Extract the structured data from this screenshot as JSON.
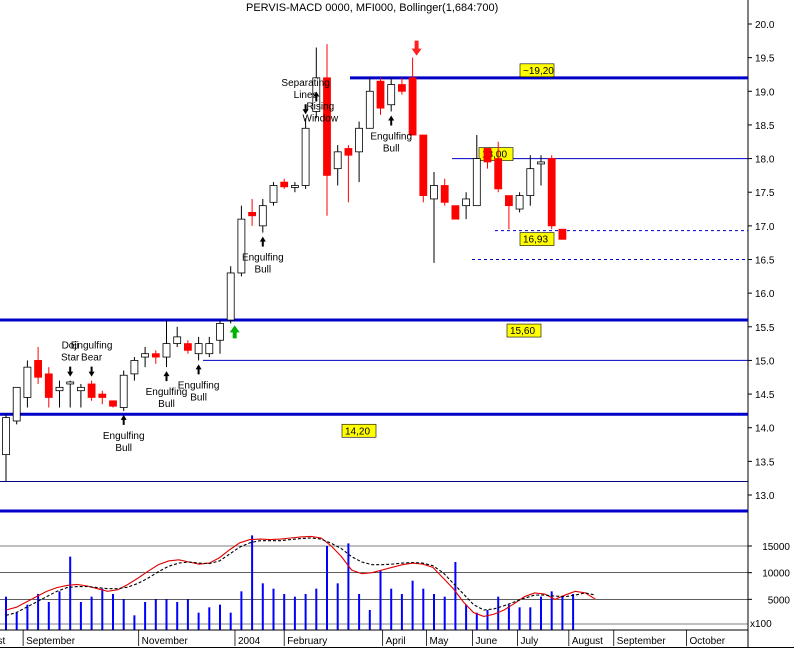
{
  "header": {
    "title": "PERVIS-MACD 0000, MFI000, Bollinger(1,684:700)"
  },
  "chart_data": [
    {
      "type": "candlestick",
      "title": "PERVIS-MACD 0000, MFI000, Bollinger(1,684:700)",
      "ylim": [
        12.7,
        20.3
      ],
      "yticks": [
        13.0,
        13.5,
        14.0,
        14.5,
        15.0,
        15.5,
        16.0,
        16.5,
        17.0,
        17.5,
        18.0,
        18.5,
        19.0,
        19.5,
        20.0
      ],
      "yticklabels": [
        "13.0",
        "13.5",
        "14.0",
        "14.5",
        "15.0",
        "15.5",
        "16.0",
        "16.5",
        "17.0",
        "17.5",
        "18.0",
        "18.5",
        "19.0",
        "19.5",
        "20.0"
      ],
      "candles": [
        {
          "o": 13.6,
          "h": 14.2,
          "l": 13.2,
          "c": 14.15
        },
        {
          "o": 14.1,
          "h": 14.6,
          "l": 14.05,
          "c": 14.6
        },
        {
          "o": 14.45,
          "h": 15.0,
          "l": 14.3,
          "c": 14.9
        },
        {
          "o": 15.0,
          "h": 15.2,
          "l": 14.65,
          "c": 14.75
        },
        {
          "o": 14.8,
          "h": 14.9,
          "l": 14.3,
          "c": 14.45
        },
        {
          "o": 14.55,
          "h": 14.7,
          "l": 14.3,
          "c": 14.6
        },
        {
          "o": 14.65,
          "h": 14.7,
          "l": 14.3,
          "c": 14.68
        },
        {
          "o": 14.55,
          "h": 14.65,
          "l": 14.3,
          "c": 14.6
        },
        {
          "o": 14.65,
          "h": 14.7,
          "l": 14.4,
          "c": 14.45
        },
        {
          "o": 14.5,
          "h": 14.55,
          "l": 14.35,
          "c": 14.45
        },
        {
          "o": 14.4,
          "h": 14.4,
          "l": 14.3,
          "c": 14.32
        },
        {
          "o": 14.3,
          "h": 14.85,
          "l": 14.25,
          "c": 14.78
        },
        {
          "o": 14.8,
          "h": 15.05,
          "l": 14.7,
          "c": 15.0
        },
        {
          "o": 15.05,
          "h": 15.2,
          "l": 14.9,
          "c": 15.1
        },
        {
          "o": 15.1,
          "h": 15.15,
          "l": 14.95,
          "c": 15.05
        },
        {
          "o": 15.05,
          "h": 15.6,
          "l": 14.9,
          "c": 15.25
        },
        {
          "o": 15.25,
          "h": 15.5,
          "l": 15.2,
          "c": 15.35
        },
        {
          "o": 15.25,
          "h": 15.3,
          "l": 15.1,
          "c": 15.15
        },
        {
          "o": 15.1,
          "h": 15.35,
          "l": 15.0,
          "c": 15.25
        },
        {
          "o": 15.1,
          "h": 15.35,
          "l": 15.05,
          "c": 15.25
        },
        {
          "o": 15.3,
          "h": 15.6,
          "l": 15.1,
          "c": 15.55
        },
        {
          "o": 15.6,
          "h": 16.4,
          "l": 15.55,
          "c": 16.3
        },
        {
          "o": 16.3,
          "h": 17.3,
          "l": 16.25,
          "c": 17.1
        },
        {
          "o": 17.2,
          "h": 17.4,
          "l": 17.0,
          "c": 17.15
        },
        {
          "o": 17.0,
          "h": 17.4,
          "l": 16.9,
          "c": 17.3
        },
        {
          "o": 17.35,
          "h": 17.65,
          "l": 17.3,
          "c": 17.6
        },
        {
          "o": 17.65,
          "h": 17.7,
          "l": 17.55,
          "c": 17.58
        },
        {
          "o": 17.6,
          "h": 17.65,
          "l": 17.5,
          "c": 17.6
        },
        {
          "o": 17.6,
          "h": 18.6,
          "l": 17.55,
          "c": 18.45
        },
        {
          "o": 18.7,
          "h": 19.65,
          "l": 18.6,
          "c": 19.2
        },
        {
          "o": 19.2,
          "h": 19.7,
          "l": 17.15,
          "c": 17.75
        },
        {
          "o": 17.85,
          "h": 18.2,
          "l": 17.6,
          "c": 18.1
        },
        {
          "o": 18.15,
          "h": 18.2,
          "l": 17.35,
          "c": 18.05
        },
        {
          "o": 18.1,
          "h": 18.55,
          "l": 17.65,
          "c": 18.45
        },
        {
          "o": 18.45,
          "h": 19.2,
          "l": 18.45,
          "c": 19.0
        },
        {
          "o": 19.15,
          "h": 19.2,
          "l": 18.65,
          "c": 18.75
        },
        {
          "o": 18.8,
          "h": 19.2,
          "l": 18.7,
          "c": 19.1
        },
        {
          "o": 19.1,
          "h": 19.2,
          "l": 18.95,
          "c": 19.0
        },
        {
          "o": 19.2,
          "h": 19.5,
          "l": 18.35,
          "c": 18.35
        },
        {
          "o": 18.35,
          "h": 18.35,
          "l": 17.35,
          "c": 17.45
        },
        {
          "o": 17.4,
          "h": 17.8,
          "l": 16.45,
          "c": 17.6
        },
        {
          "o": 17.6,
          "h": 17.7,
          "l": 17.3,
          "c": 17.35
        },
        {
          "o": 17.3,
          "h": 17.3,
          "l": 17.1,
          "c": 17.1
        },
        {
          "o": 17.3,
          "h": 17.5,
          "l": 17.1,
          "c": 17.4
        },
        {
          "o": 17.3,
          "h": 18.35,
          "l": 17.3,
          "c": 18.0
        },
        {
          "o": 18.15,
          "h": 18.15,
          "l": 17.85,
          "c": 17.95
        },
        {
          "o": 18.0,
          "h": 18.25,
          "l": 17.5,
          "c": 17.55
        },
        {
          "o": 17.45,
          "h": 17.45,
          "l": 16.95,
          "c": 17.3
        },
        {
          "o": 17.25,
          "h": 17.5,
          "l": 17.2,
          "c": 17.45
        },
        {
          "o": 17.45,
          "h": 18.05,
          "l": 17.3,
          "c": 17.85
        },
        {
          "o": 17.95,
          "h": 18.05,
          "l": 17.6,
          "c": 17.95
        },
        {
          "o": 18.0,
          "h": 18.05,
          "l": 16.95,
          "c": 17.0
        },
        {
          "o": 16.95,
          "h": 16.95,
          "l": 16.8,
          "c": 16.8
        }
      ],
      "levels": [
        {
          "value": 19.2,
          "label": "~19,20",
          "style": "thick"
        },
        {
          "value": 18.0,
          "label": "18,00",
          "style": "thin"
        },
        {
          "value": 15.6,
          "label": "15,60",
          "style": "thick"
        },
        {
          "value": 15.0,
          "label": "",
          "style": "thin"
        },
        {
          "value": 14.2,
          "label": "14,20",
          "style": "thick"
        },
        {
          "value": 13.2,
          "label": "",
          "style": "thin"
        },
        {
          "value": 16.93,
          "label": "16,93",
          "style": "dashed"
        },
        {
          "value": 16.5,
          "label": "",
          "style": "dashed"
        }
      ],
      "annotations": [
        {
          "text": "Doji Star",
          "candle": 6,
          "pos": "above"
        },
        {
          "text": "Engulfing Bear",
          "candle": 8,
          "pos": "above"
        },
        {
          "text": "Engulfing Bull",
          "candle": 11,
          "pos": "below"
        },
        {
          "text": "Engulfing Bull",
          "candle": 15,
          "pos": "below"
        },
        {
          "text": "Engulfing Bull",
          "candle": 18,
          "pos": "below"
        },
        {
          "text": "Engulfing Bull",
          "candle": 24,
          "pos": "below"
        },
        {
          "text": "Separating Lines",
          "candle": 28,
          "pos": "above"
        },
        {
          "text": "Rising Window",
          "candle": 29,
          "pos": "inside"
        },
        {
          "text": "Engulfing Bull",
          "candle": 36,
          "pos": "below"
        }
      ],
      "signals": [
        {
          "candle": 21,
          "direction": "up",
          "color": "#00b000"
        },
        {
          "candle": 38,
          "direction": "down",
          "color": "#ff2020"
        }
      ]
    },
    {
      "type": "bar",
      "title": "",
      "ylim": [
        0,
        18000
      ],
      "yticks": [
        5000,
        10000,
        15000
      ],
      "yticklabels": [
        "5000",
        "10000",
        "15000"
      ],
      "scale_label": "x100",
      "volume": [
        5500,
        2500,
        4000,
        6000,
        4500,
        6500,
        13000,
        4500,
        5500,
        7000,
        6000,
        5000,
        2000,
        4500,
        5000,
        5000,
        4500,
        5000,
        2500,
        3500,
        4000,
        2500,
        6500,
        17000,
        8000,
        7000,
        6000,
        5500,
        6000,
        7000,
        15000,
        8000,
        15500,
        6000,
        3000,
        10500,
        7000,
        6000,
        8500,
        7000,
        6000,
        5500,
        12000,
        4000,
        2500,
        3000,
        5500,
        4000,
        3500,
        3500,
        5500,
        6500,
        5500,
        6000
      ],
      "series": [
        {
          "type": "line",
          "color": "#e00000",
          "values": [
            3000,
            3500,
            4500,
            5500,
            6500,
            7200,
            7600,
            7800,
            7500,
            7000,
            6500,
            6800,
            7800,
            9000,
            10300,
            11500,
            12200,
            12400,
            12000,
            11600,
            11800,
            12800,
            14300,
            15600,
            16200,
            16300,
            16200,
            16300,
            16500,
            16700,
            16800,
            16500,
            15000,
            13000,
            10500,
            9800,
            10000,
            10500,
            11000,
            11500,
            11800,
            11600,
            11000,
            9000,
            7000,
            4500,
            2500,
            1800,
            2200,
            3000,
            4200,
            5500,
            6200,
            6000,
            5000,
            5800,
            6500,
            6200,
            5000
          ]
        },
        {
          "type": "line",
          "color": "#000000",
          "dash": true,
          "values": [
            2000,
            2500,
            3500,
            4500,
            5500,
            6500,
            7200,
            7400,
            7400,
            7200,
            7000,
            7000,
            7300,
            8000,
            9000,
            10200,
            11200,
            11800,
            12000,
            11800,
            11700,
            12200,
            13500,
            14800,
            15600,
            16000,
            16000,
            16000,
            16200,
            16400,
            16500,
            16300,
            15500,
            14500,
            13000,
            12000,
            11500,
            11500,
            11600,
            11800,
            11900,
            11800,
            11300,
            10000,
            8000,
            6000,
            4000,
            3000,
            3200,
            3800,
            4500,
            5200,
            5800,
            5800,
            5600,
            5500,
            5800,
            6200,
            5800
          ]
        }
      ]
    }
  ],
  "xaxis": {
    "labels": [
      {
        "text": "ust",
        "week": -1.6
      },
      {
        "text": "September",
        "week": 1.6
      },
      {
        "text": "November",
        "week": 12.4
      },
      {
        "text": "2004",
        "week": 21.4
      },
      {
        "text": "February",
        "week": 26.0
      },
      {
        "text": "April",
        "week": 35.2
      },
      {
        "text": "May",
        "week": 39.3
      },
      {
        "text": "June",
        "week": 43.6
      },
      {
        "text": "July",
        "week": 47.8
      },
      {
        "text": "August",
        "week": 52.6
      },
      {
        "text": "September",
        "week": 56.8
      },
      {
        "text": "October",
        "week": 63.6
      }
    ]
  },
  "colors": {
    "up_candle": "#ffffff",
    "down_candle": "#ff0000",
    "level_line": "#0000c8",
    "volume_bar": "#0000ff",
    "label_fill": "#ffff00"
  }
}
